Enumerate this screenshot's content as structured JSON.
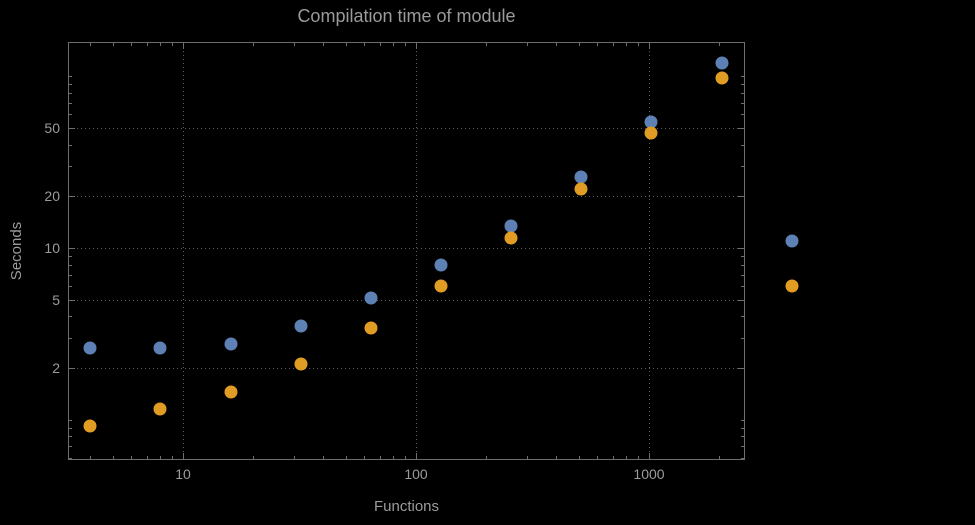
{
  "chart_data": {
    "type": "scatter",
    "title": "Compilation time of module",
    "xlabel": "Functions",
    "ylabel": "Seconds",
    "x_scale": "log",
    "y_scale": "log",
    "grid": "dotted",
    "legend": "none",
    "x_range": [
      3.2,
      2580
    ],
    "y_range": [
      0.58,
      158
    ],
    "x_ticks": [
      10,
      100,
      1000
    ],
    "x_tick_labels": [
      "10",
      "100",
      "1000"
    ],
    "y_ticks": [
      2,
      5,
      10,
      20,
      50
    ],
    "y_tick_labels": [
      "2",
      "5",
      "10",
      "20",
      "50"
    ],
    "style": {
      "background": "#000000",
      "text": "#9b9b9b",
      "grid": "#5c5c5c",
      "frame": "#6e6e6e"
    },
    "series": [
      {
        "name": "series-blue",
        "color": "#5e81b5",
        "points": [
          [
            4,
            2.6
          ],
          [
            8,
            2.6
          ],
          [
            16,
            2.75
          ],
          [
            32,
            3.5
          ],
          [
            64,
            5.1
          ],
          [
            128,
            8.0
          ],
          [
            256,
            13.5
          ],
          [
            512,
            26
          ],
          [
            1024,
            54
          ],
          [
            2048,
            120
          ]
        ]
      },
      {
        "name": "series-orange",
        "color": "#e19c24",
        "points": [
          [
            4,
            0.92
          ],
          [
            8,
            1.15
          ],
          [
            16,
            1.45
          ],
          [
            32,
            2.1
          ],
          [
            64,
            3.4
          ],
          [
            128,
            6.0
          ],
          [
            256,
            11.5
          ],
          [
            512,
            22
          ],
          [
            1024,
            47
          ],
          [
            2048,
            98
          ]
        ]
      }
    ],
    "outside_points": [
      {
        "series": "series-blue",
        "x": 4096,
        "y": 11
      },
      {
        "series": "series-orange",
        "x": 4096,
        "y": 6
      }
    ]
  }
}
